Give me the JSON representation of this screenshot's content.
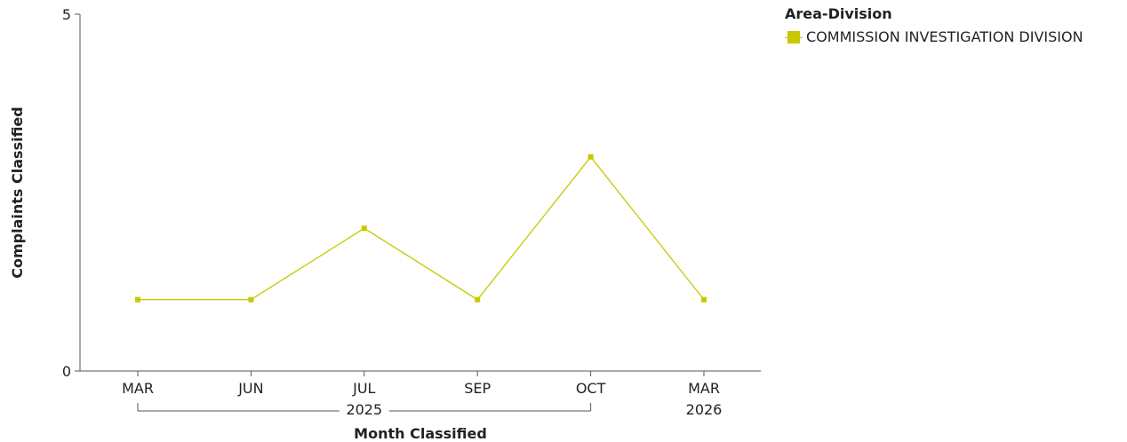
{
  "colors": {
    "series": "#c8c800",
    "axis": "#555555",
    "text": "#222222"
  },
  "legend": {
    "title": "Area-Division",
    "placement": "top-right"
  },
  "chart_data": {
    "type": "line",
    "title": "",
    "xlabel": "Month Classified",
    "ylabel": "Complaints Classified",
    "ylim": [
      0,
      5
    ],
    "yticks": [
      "0",
      "5"
    ],
    "grid": false,
    "categories": [
      "MAR",
      "JUN",
      "JUL",
      "SEP",
      "OCT",
      "MAR"
    ],
    "year_groups": [
      {
        "label": "2025",
        "from": 0,
        "to": 4
      },
      {
        "label": "2026",
        "from": 5,
        "to": 5
      }
    ],
    "series": [
      {
        "name": "COMMISSION INVESTIGATION DIVISION",
        "values": [
          1,
          1,
          2,
          1,
          3,
          1
        ]
      }
    ]
  }
}
